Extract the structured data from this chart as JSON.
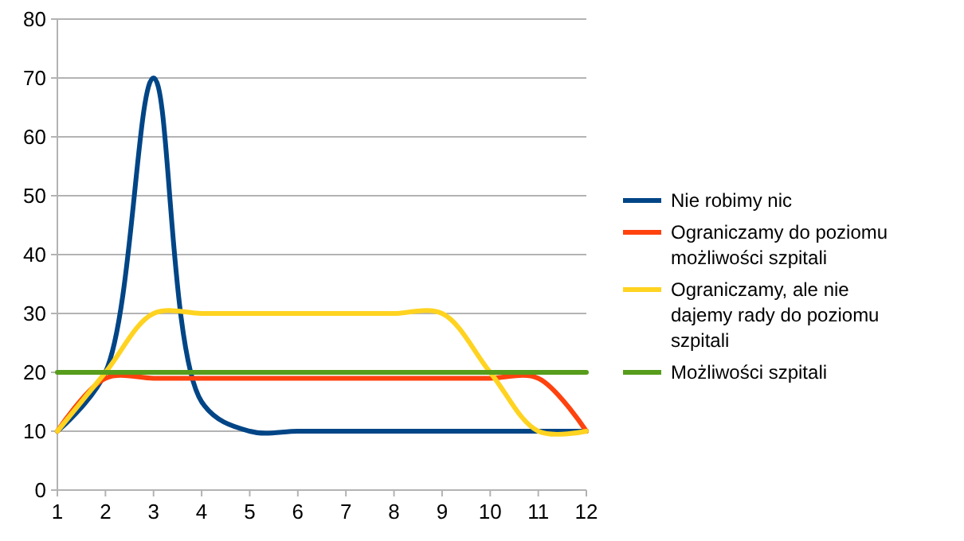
{
  "chart_data": {
    "type": "line",
    "x": [
      1,
      2,
      3,
      4,
      5,
      6,
      7,
      8,
      9,
      10,
      11,
      12
    ],
    "xlim": [
      1,
      12
    ],
    "xticks": [
      1,
      2,
      3,
      4,
      5,
      6,
      7,
      8,
      9,
      10,
      11,
      12
    ],
    "ylim": [
      0,
      80
    ],
    "yticks": [
      0,
      10,
      20,
      30,
      40,
      50,
      60,
      70,
      80
    ],
    "grid": "y",
    "legend": "right",
    "marker": "none",
    "line_style": "solid",
    "series": [
      {
        "name": "Nie robimy nic",
        "color": "#004586",
        "values": [
          10,
          20,
          70,
          15,
          10,
          10,
          10,
          10,
          10,
          10,
          10,
          10
        ]
      },
      {
        "name": "Ograniczamy do poziomu możliwości szpitali",
        "color": "#ff420e",
        "values": [
          10,
          19,
          19,
          19,
          19,
          19,
          19,
          19,
          19,
          19,
          19,
          10
        ]
      },
      {
        "name": "Ograniczamy, ale nie dajemy rady do poziomu szpitali",
        "color": "#ffd320",
        "values": [
          10,
          20,
          30,
          30,
          30,
          30,
          30,
          30,
          30,
          20,
          10,
          10
        ]
      },
      {
        "name": "Możliwości szpitali",
        "color": "#579d1c",
        "values": [
          20,
          20,
          20,
          20,
          20,
          20,
          20,
          20,
          20,
          20,
          20,
          20
        ]
      }
    ]
  }
}
